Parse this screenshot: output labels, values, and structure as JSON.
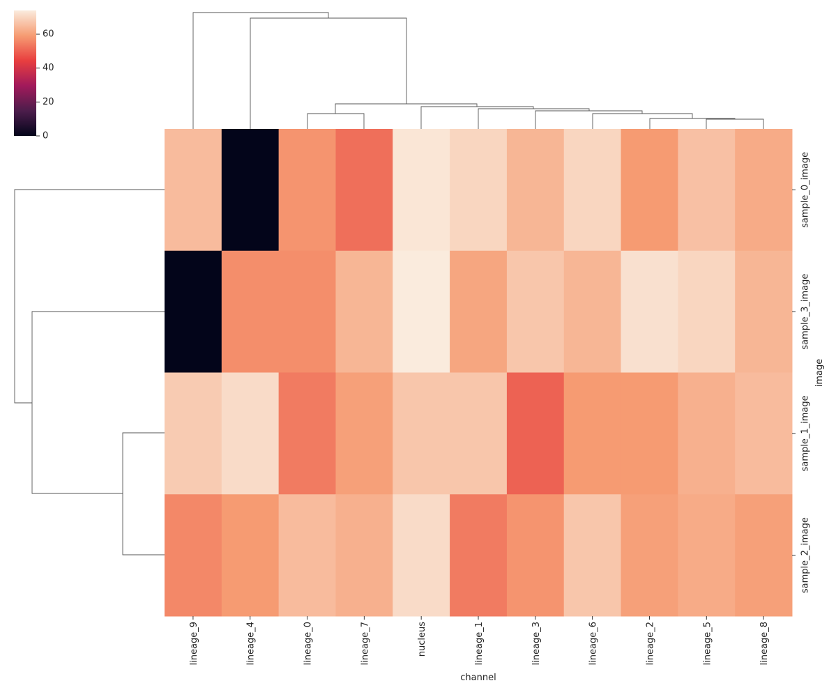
{
  "chart_data": {
    "type": "heatmap",
    "x_label": "channel",
    "y_label": "image",
    "categories": [
      "lineage_9",
      "lineage_4",
      "lineage_0",
      "lineage_7",
      "nucleus",
      "lineage_1",
      "lineage_3",
      "lineage_6",
      "lineage_2",
      "lineage_5",
      "lineage_8"
    ],
    "rows": [
      "sample_0_image",
      "sample_3_image",
      "sample_1_image",
      "sample_2_image"
    ],
    "values": [
      [
        65,
        0,
        58,
        52,
        73,
        70,
        64,
        70,
        59,
        66,
        62
      ],
      [
        0,
        57,
        57,
        64,
        74,
        61,
        67,
        64,
        72,
        70,
        64
      ],
      [
        68,
        71,
        54,
        60,
        67,
        67,
        50,
        59,
        59,
        63,
        65
      ],
      [
        56,
        59,
        65,
        63,
        71,
        54,
        58,
        67,
        60,
        62,
        60
      ]
    ],
    "colormap": "rocket",
    "vlim": [
      0,
      74
    ],
    "colorbar_ticks": [
      0,
      20,
      40,
      60
    ]
  }
}
